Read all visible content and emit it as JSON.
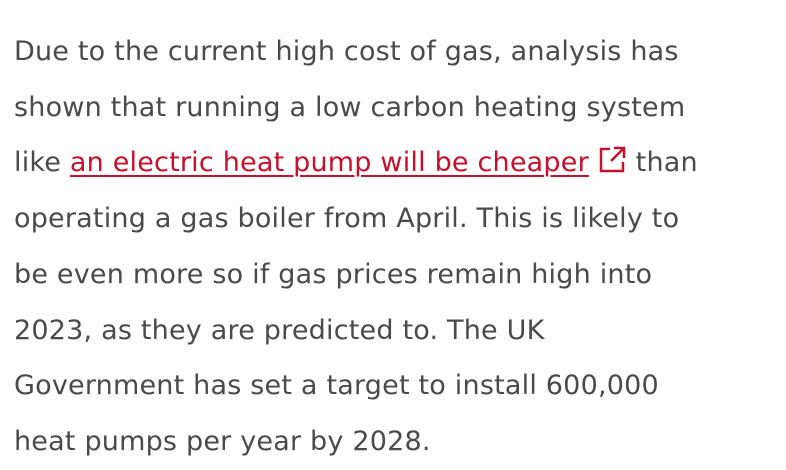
{
  "paragraph": {
    "text_start": [
      "Due to the current high cost of gas, analysis has",
      "shown that running a low carbon heating system",
      "like "
    ],
    "link": "an electric heat pump will be cheaper",
    "text_end": [
      " than",
      "operating a gas boiler from April. This is likely to",
      "be even more so if gas prices remain high into",
      "2023, as they are predicted to. The UK",
      "Government has set a target to install 600,000",
      "heat pumps per year by 2028."
    ]
  }
}
